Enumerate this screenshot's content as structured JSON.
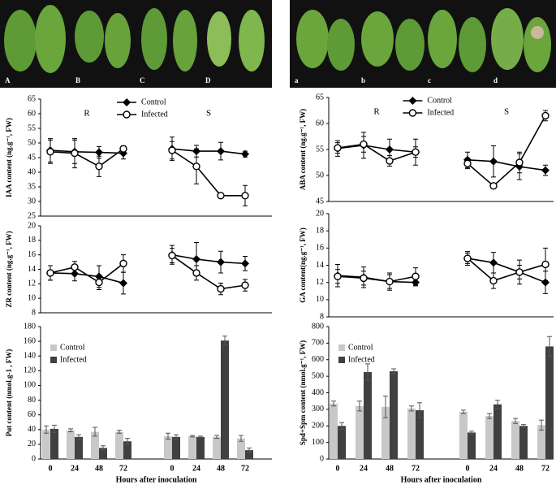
{
  "photo_labels": {
    "left": [
      "A",
      "B",
      "C",
      "D"
    ],
    "right": [
      "a",
      "b",
      "c",
      "d"
    ]
  },
  "chart_data": [
    {
      "type": "line",
      "ylabel": "IAA content (ng.g⁻¹, FW)",
      "group_labels": [
        "R",
        "S"
      ],
      "legend": "top",
      "categories": [
        null,
        null,
        null,
        null,
        null,
        null,
        null,
        null,
        null
      ],
      "ylim": [
        25,
        65
      ],
      "yticks": [
        25,
        30,
        35,
        40,
        45,
        50,
        55,
        60,
        65
      ],
      "series": [
        {
          "name": "Control",
          "color": "#000000",
          "marker": "diamond",
          "values": [
            47.5,
            47,
            46.8,
            46.5,
            null,
            48,
            47.2,
            47.2,
            46.2
          ],
          "errors": [
            4,
            4,
            2,
            2,
            null,
            4,
            2,
            3,
            1
          ]
        },
        {
          "name": "Infected",
          "color": "#000000",
          "marker": "circle-open",
          "values": [
            47,
            46.5,
            42,
            48,
            null,
            47.5,
            42,
            32,
            32
          ],
          "errors": [
            4,
            5,
            3.5,
            1,
            null,
            3,
            6,
            0.5,
            3.5
          ]
        }
      ]
    },
    {
      "type": "line",
      "ylabel": "ZR content (ng.g⁻¹, FW)",
      "categories": [
        null,
        null,
        null,
        null,
        null,
        null,
        null,
        null,
        null
      ],
      "ylim": [
        8,
        20
      ],
      "yticks": [
        8,
        10,
        12,
        14,
        16,
        18,
        20
      ],
      "series": [
        {
          "color": "#000000",
          "marker": "diamond",
          "values": [
            13.5,
            13.4,
            13,
            12.1,
            null,
            16,
            15.4,
            15,
            14.8
          ],
          "errors": [
            1,
            1,
            1.5,
            1.5,
            null,
            1.3,
            2.3,
            1.5,
            1
          ]
        },
        {
          "color": "#000000",
          "marker": "circle-open",
          "values": [
            13.5,
            14.3,
            12.2,
            14.8,
            null,
            15.9,
            13.5,
            11.3,
            11.8
          ],
          "errors": [
            1,
            0.8,
            1,
            1.2,
            null,
            1,
            1,
            0.8,
            0.8
          ]
        }
      ]
    },
    {
      "type": "bar",
      "ylabel": "Put content (nmol.g-1 , FW)",
      "xlabel": "Hours after inoculation",
      "legend": "upper-left",
      "categories": [
        "0",
        "24",
        "48",
        "72",
        null,
        "0",
        "24",
        "48",
        "72"
      ],
      "ylim": [
        0,
        180
      ],
      "yticks": [
        0,
        20,
        40,
        60,
        80,
        100,
        120,
        140,
        160,
        180
      ],
      "series": [
        {
          "name": "Control",
          "color": "#c8c8c8",
          "values": [
            40,
            39,
            37,
            37,
            null,
            31,
            31,
            30,
            28
          ],
          "errors": [
            5,
            2,
            6,
            2,
            null,
            4,
            1,
            2,
            4
          ]
        },
        {
          "name": "Infected",
          "color": "#404040",
          "values": [
            41,
            30,
            15,
            24,
            null,
            30,
            30,
            161,
            12
          ],
          "errors": [
            5,
            3,
            3,
            4,
            null,
            3,
            1,
            6,
            3
          ]
        }
      ]
    },
    {
      "type": "line",
      "ylabel": "ABA content (ng.g⁻¹, FW)",
      "group_labels": [
        "R",
        "S"
      ],
      "legend": "top",
      "categories": [
        null,
        null,
        null,
        null,
        null,
        null,
        null,
        null,
        null
      ],
      "ylim": [
        45,
        65
      ],
      "yticks": [
        45,
        50,
        55,
        60,
        65
      ],
      "series": [
        {
          "name": "Control",
          "color": "#000000",
          "marker": "diamond",
          "values": [
            55.2,
            55.8,
            55,
            54.5,
            null,
            53,
            52.7,
            51.7,
            51
          ],
          "errors": [
            1.5,
            2.5,
            2,
            2.5,
            null,
            1.5,
            3,
            2.5,
            1
          ]
        },
        {
          "name": "Infected",
          "color": "#000000",
          "marker": "circle-open",
          "values": [
            55.3,
            56,
            52.8,
            54.5,
            null,
            52.3,
            48,
            52.5,
            61.5
          ],
          "errors": [
            1,
            1.5,
            1,
            1,
            null,
            1,
            0.5,
            2,
            1
          ]
        }
      ]
    },
    {
      "type": "line",
      "ylabel": "GA content(ng.g⁻¹, FW)",
      "categories": [
        null,
        null,
        null,
        null,
        null,
        null,
        null,
        null,
        null
      ],
      "ylim": [
        8,
        20
      ],
      "yticks": [
        8,
        10,
        12,
        14,
        16,
        18,
        20
      ],
      "series": [
        {
          "color": "#000000",
          "marker": "diamond",
          "values": [
            12.8,
            12.6,
            12.1,
            12,
            null,
            14.8,
            14.3,
            13.2,
            12
          ],
          "errors": [
            1.3,
            1.2,
            1,
            0.4,
            null,
            0.8,
            1.2,
            1.4,
            1.3
          ]
        },
        {
          "color": "#000000",
          "marker": "circle-open",
          "values": [
            12.7,
            12.5,
            12.1,
            12.7,
            null,
            14.8,
            12.2,
            13.2,
            14.1
          ],
          "errors": [
            0.8,
            0.8,
            0.8,
            1,
            null,
            0.6,
            0.9,
            0.8,
            1.9
          ]
        }
      ]
    },
    {
      "type": "bar",
      "ylabel": "Spd+Spm content (nmol.g⁻¹, FW)",
      "xlabel": "Hours after inoculation",
      "legend": "upper-left",
      "categories": [
        "0",
        "24",
        "48",
        "72",
        null,
        "0",
        "24",
        "48",
        "72"
      ],
      "ylim": [
        0,
        800
      ],
      "yticks": [
        0,
        100,
        200,
        300,
        400,
        500,
        600,
        700,
        800
      ],
      "series": [
        {
          "name": "Control",
          "color": "#c8c8c8",
          "values": [
            335,
            320,
            315,
            305,
            null,
            285,
            260,
            230,
            205
          ],
          "errors": [
            15,
            30,
            65,
            15,
            null,
            10,
            15,
            15,
            30
          ]
        },
        {
          "name": "Infected",
          "color": "#404040",
          "values": [
            200,
            525,
            530,
            295,
            null,
            160,
            330,
            200,
            680
          ],
          "errors": [
            20,
            50,
            15,
            45,
            null,
            8,
            25,
            8,
            60
          ]
        }
      ]
    }
  ]
}
